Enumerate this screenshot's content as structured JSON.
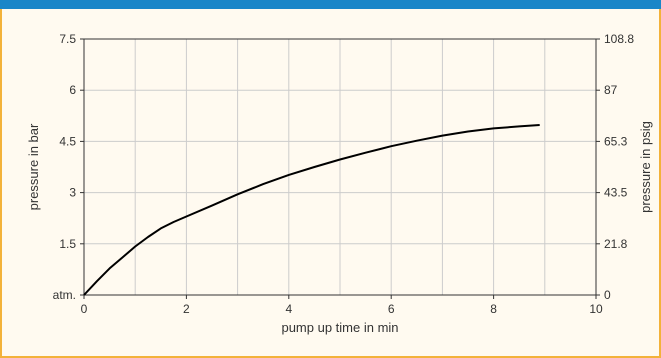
{
  "chart_data": {
    "type": "line",
    "xlabel": "pump up time in min",
    "ylabel": "pressure in bar",
    "ylabel_right": "pressure in psig",
    "xlim": [
      0,
      10
    ],
    "ylim": [
      0,
      7.5
    ],
    "ylim_right": [
      0,
      108.8
    ],
    "x_ticks": [
      "0",
      "2",
      "4",
      "6",
      "8",
      "10"
    ],
    "y_ticks": [
      "atm.",
      "1.5",
      "3",
      "4.5",
      "6",
      "7.5"
    ],
    "y_ticks_right": [
      "0",
      "21.8",
      "43.5",
      "65.3",
      "87",
      "108.8"
    ],
    "grid": true,
    "series": [
      {
        "x": [
          0,
          0.25,
          0.5,
          0.75,
          1.0,
          1.25,
          1.5,
          1.75,
          2.0,
          2.5,
          3.0,
          3.5,
          4.0,
          4.5,
          5.0,
          5.5,
          6.0,
          6.5,
          7.0,
          7.5,
          8.0,
          8.5,
          8.9
        ],
        "y": [
          0,
          0.4,
          0.78,
          1.1,
          1.42,
          1.7,
          1.95,
          2.14,
          2.3,
          2.62,
          2.95,
          3.25,
          3.52,
          3.75,
          3.97,
          4.17,
          4.36,
          4.52,
          4.67,
          4.79,
          4.88,
          4.94,
          4.98
        ]
      }
    ]
  },
  "colors": {
    "header": "#1a86c8",
    "frame": "#f3b23a",
    "background": "#fffaf0",
    "grid": "#cccccc",
    "line": "#000000"
  }
}
